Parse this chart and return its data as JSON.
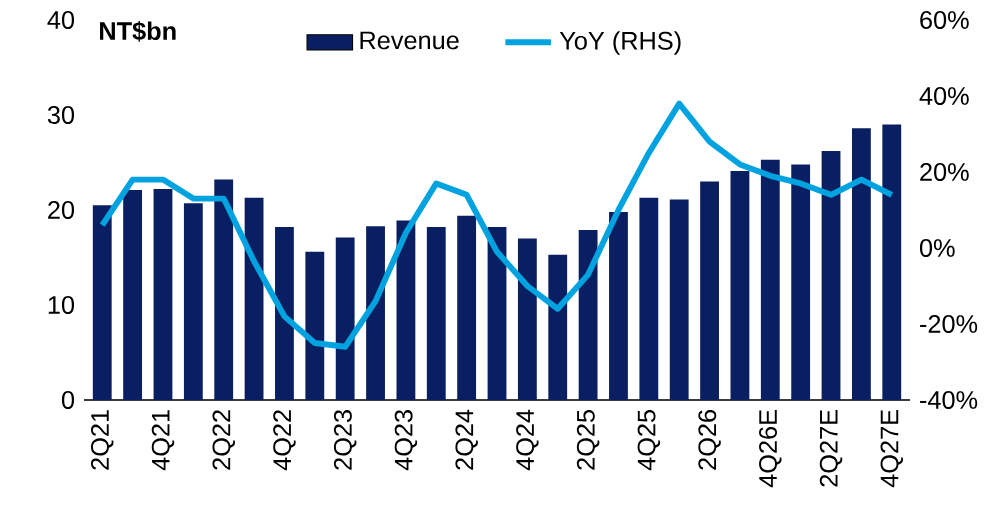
{
  "chart_data": {
    "type": "bar",
    "ylabel": "NT$bn",
    "categories": [
      "2Q21",
      null,
      "4Q21",
      null,
      "2Q22",
      null,
      "4Q22",
      null,
      "2Q23",
      null,
      "4Q23",
      null,
      "2Q24",
      null,
      "4Q24",
      null,
      "2Q25",
      null,
      "4Q25",
      null,
      "2Q26",
      null,
      "4Q26E",
      null,
      "2Q27E",
      null,
      "4Q27E"
    ],
    "series": [
      {
        "name": "Revenue",
        "color": "#0a1f62",
        "values": [
          20.5,
          22.1,
          22.2,
          20.7,
          23.2,
          21.3,
          18.2,
          15.6,
          17.1,
          18.3,
          18.9,
          18.2,
          19.4,
          18.2,
          17.0,
          15.3,
          17.9,
          19.8,
          21.3,
          21.1,
          23.0,
          24.1,
          25.3,
          24.8,
          26.2,
          28.6,
          29.0
        ]
      },
      {
        "name": "YoY (RHS)",
        "type": "line",
        "axis": "y2",
        "color": "#00a3e0",
        "values": [
          6,
          18,
          18,
          13,
          13,
          -3.5,
          -18,
          -25,
          -26,
          -14,
          4,
          17,
          14,
          -1,
          -10,
          -16,
          -7,
          10,
          25,
          38,
          28,
          22,
          19,
          17,
          14,
          18,
          14
        ]
      }
    ],
    "ylim": [
      0,
      40
    ],
    "yticks": [
      0,
      10,
      20,
      30,
      40
    ],
    "y2lim": [
      -40,
      60
    ],
    "y2ticks": [
      {
        "value": -40,
        "label": "-40%"
      },
      {
        "value": -20,
        "label": "-20%"
      },
      {
        "value": 0,
        "label": "0%"
      },
      {
        "value": 20,
        "label": "20%"
      },
      {
        "value": 40,
        "label": "40%"
      },
      {
        "value": 60,
        "label": "60%"
      }
    ],
    "legend": "top",
    "grid": false,
    "marker": "none",
    "line_style": "solid"
  }
}
